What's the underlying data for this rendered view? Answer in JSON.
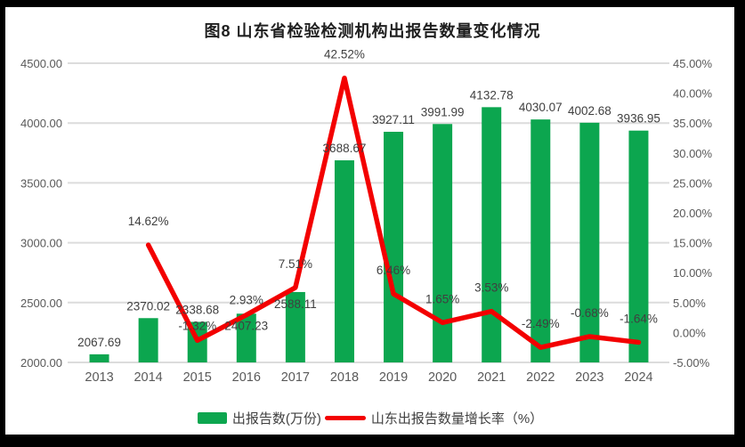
{
  "header": {
    "title": "图8  山东省检验检测机构出报告数量变化情况"
  },
  "colors": {
    "bar": "#0CA64F",
    "line": "#F30000",
    "grid": "#DCDCDC",
    "axis_text": "#595959",
    "data_label": "#3F3F3F",
    "panel_bg": "#FFFFFF",
    "frame_bg": "#000000"
  },
  "chart_data": {
    "type": "bar",
    "subtype": "combo-bar-line",
    "title": "图8  山东省检验检测机构出报告数量变化情况",
    "categories": [
      "2013",
      "2014",
      "2015",
      "2016",
      "2017",
      "2018",
      "2019",
      "2020",
      "2021",
      "2022",
      "2023",
      "2024"
    ],
    "series": [
      {
        "name": "出报告数(万份)",
        "type": "bar",
        "axis": "left",
        "color": "#0CA64F",
        "values": [
          2067.69,
          2370.02,
          2338.68,
          2407.23,
          2588.11,
          3688.67,
          3927.11,
          3991.99,
          4132.78,
          4030.07,
          4002.68,
          3936.95
        ],
        "labels": [
          "2067.69",
          "2370.02",
          "2338.68",
          "2407.23",
          "2588.11",
          "3688.67",
          "3927.11",
          "3991.99",
          "4132.78",
          "4030.07",
          "4002.68",
          "3936.95"
        ]
      },
      {
        "name": "山东出报告数量增长率（%）",
        "type": "line",
        "axis": "right",
        "color": "#F30000",
        "values": [
          null,
          14.62,
          -1.32,
          2.93,
          7.51,
          42.52,
          6.46,
          1.65,
          3.53,
          -2.49,
          -0.68,
          -1.64
        ],
        "labels": [
          null,
          "14.62%",
          "-1.32%",
          "2.93%",
          "7.51%",
          "42.52%",
          "6.46%",
          "1.65%",
          "3.53%",
          "-2.49%",
          "-0.68%",
          "-1.64%"
        ]
      }
    ],
    "left_axis": {
      "min": 2000,
      "max": 4500,
      "step": 500,
      "tick_labels": [
        "2000.00",
        "2500.00",
        "3000.00",
        "3500.00",
        "4000.00",
        "4500.00"
      ]
    },
    "right_axis": {
      "min": -5,
      "max": 45,
      "step": 5,
      "tick_labels": [
        "-5.00%",
        "0.00%",
        "5.00%",
        "10.00%",
        "15.00%",
        "20.00%",
        "25.00%",
        "30.00%",
        "35.00%",
        "40.00%",
        "45.00%"
      ]
    },
    "grid": true,
    "legend_position": "bottom"
  },
  "legend": {
    "items": [
      {
        "label": "出报告数(万份)",
        "swatch": "bar",
        "color": "#0CA64F"
      },
      {
        "label": "山东出报告数量增长率（%）",
        "swatch": "line",
        "color": "#F30000"
      }
    ]
  }
}
